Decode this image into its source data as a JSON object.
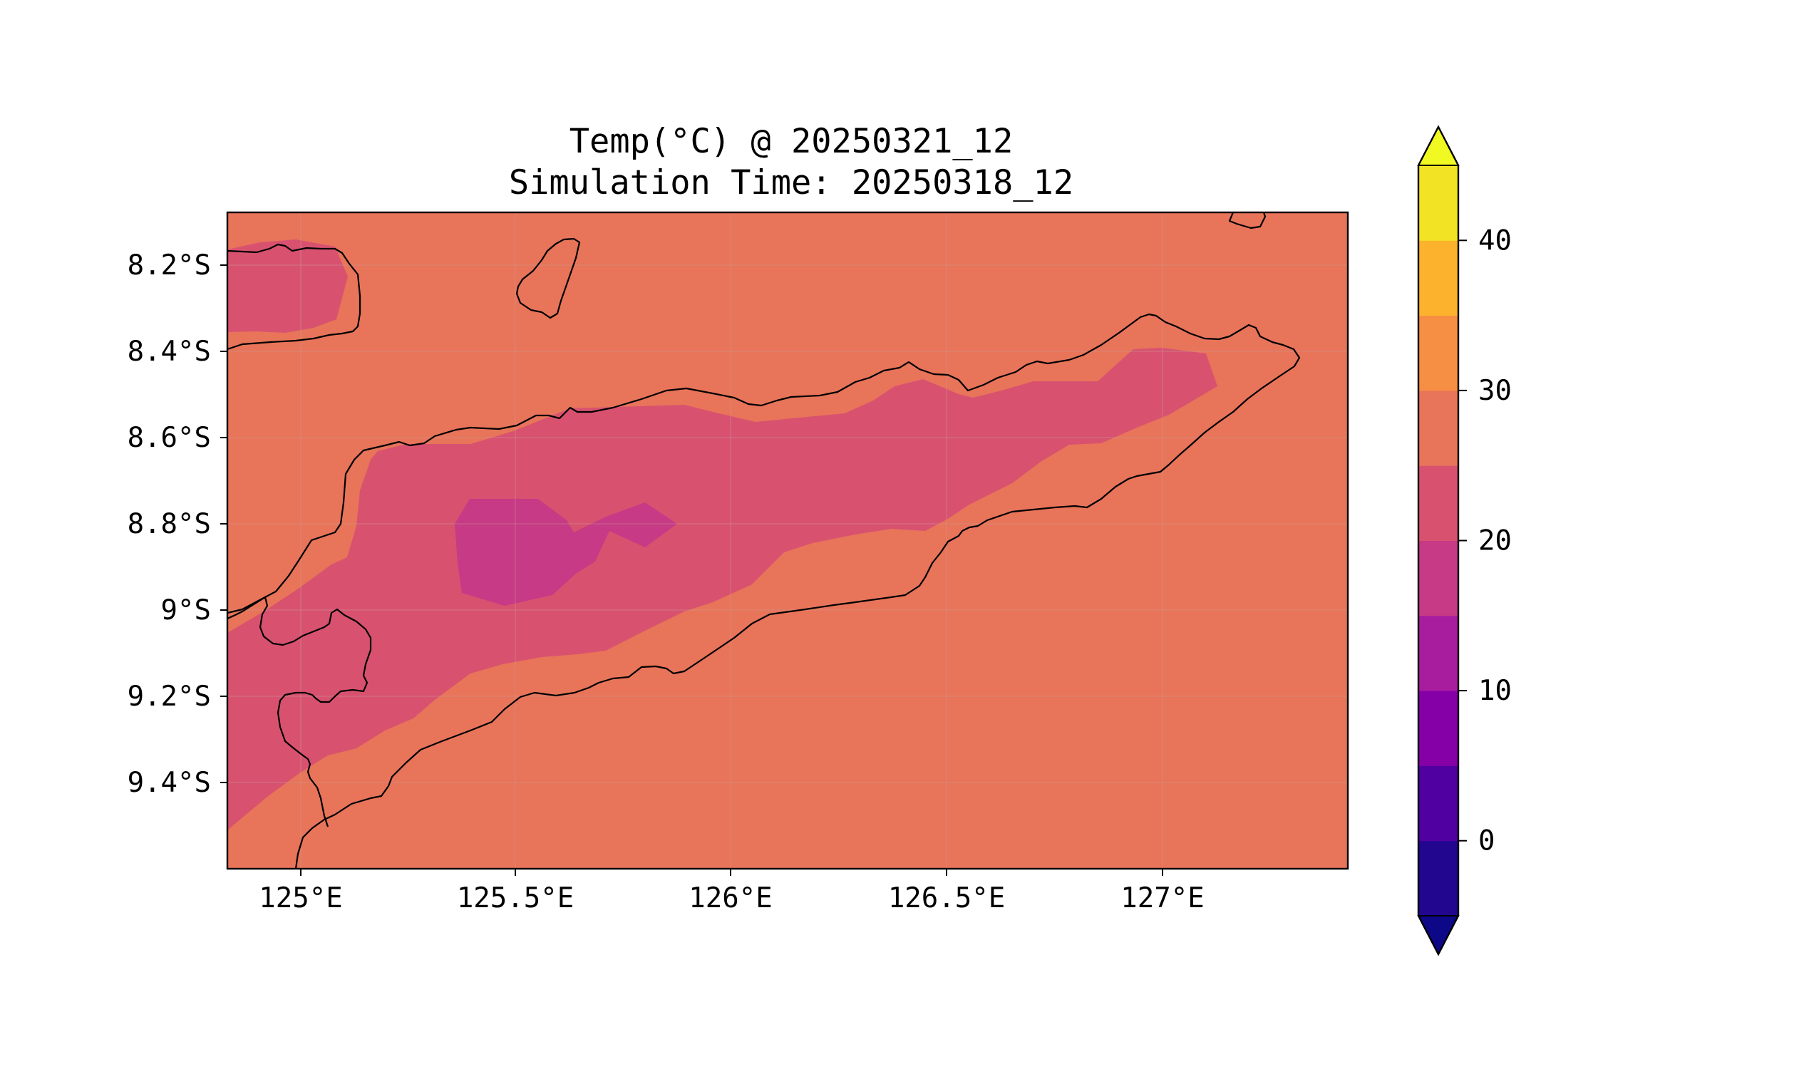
{
  "figure": {
    "title_line1": "Temp(°C) @ 20250321_12",
    "title_line2": "Simulation Time: 20250318_12"
  },
  "map": {
    "projection": "PlateCarree",
    "lon_range": [
      124.82,
      127.42
    ],
    "lat_range": [
      -9.6,
      -8.08
    ],
    "x_ticks": [
      {
        "value": 125.0,
        "label": "125°E"
      },
      {
        "value": 125.5,
        "label": "125.5°E"
      },
      {
        "value": 126.0,
        "label": "126°E"
      },
      {
        "value": 126.5,
        "label": "126.5°E"
      },
      {
        "value": 127.0,
        "label": "127°E"
      }
    ],
    "y_ticks": [
      {
        "value": -8.2,
        "label": "8.2°S"
      },
      {
        "value": -8.4,
        "label": "8.4°S"
      },
      {
        "value": -8.6,
        "label": "8.6°S"
      },
      {
        "value": -8.8,
        "label": "8.8°S"
      },
      {
        "value": -9.0,
        "label": "9°S"
      },
      {
        "value": -9.2,
        "label": "9.2°S"
      },
      {
        "value": -9.4,
        "label": "9.4°S"
      }
    ],
    "gridlines": true,
    "coastlines": true,
    "background_level_color": "#e8745a"
  },
  "colorbar": {
    "levels": [
      -5,
      0,
      5,
      10,
      15,
      20,
      25,
      30,
      35,
      40,
      45
    ],
    "colors": [
      "#220690",
      "#5000a0",
      "#8600a8",
      "#a81c9e",
      "#c63a86",
      "#d85270",
      "#e8745a",
      "#f68e44",
      "#fdb22e",
      "#f2e325"
    ],
    "under_color": "#0d0887",
    "over_color": "#f0f921",
    "extend": "both",
    "ticks": [
      {
        "value": 0,
        "label": "0"
      },
      {
        "value": 10,
        "label": "10"
      },
      {
        "value": 20,
        "label": "20"
      },
      {
        "value": 30,
        "label": "30"
      },
      {
        "value": 40,
        "label": "40"
      }
    ]
  }
}
